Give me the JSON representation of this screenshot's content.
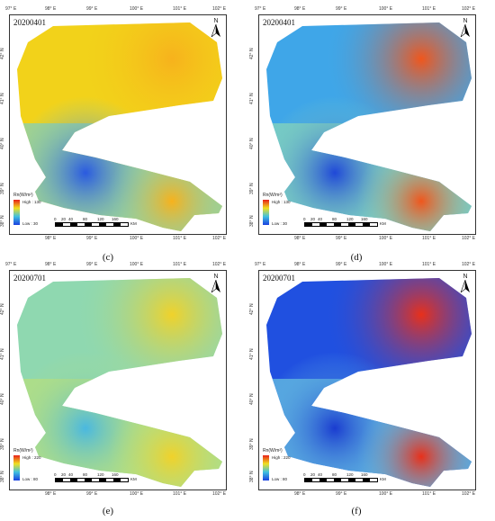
{
  "panels": [
    {
      "id": "c",
      "date": "20200401",
      "caption": "(c)",
      "legend": {
        "title": "Rn(W/m²)",
        "high": "High : 130",
        "low": "Low : 30"
      },
      "colors": {
        "base": "#f2d21a",
        "accent": "#f7b21c",
        "low": "#2a5ae0",
        "mid": "#7fd0c0"
      }
    },
    {
      "id": "d",
      "date": "20200401",
      "caption": "(d)",
      "legend": {
        "title": "Rn(W/m²)",
        "high": "High : 130",
        "low": "Low : 30"
      },
      "colors": {
        "base": "#3fa6e8",
        "accent": "#f0561c",
        "low": "#1f48d8",
        "mid": "#8cd8b8"
      }
    },
    {
      "id": "e",
      "date": "20200701",
      "caption": "(e)",
      "legend": {
        "title": "Rn(W/m²)",
        "high": "High : 220",
        "low": "Low : 80"
      },
      "colors": {
        "base": "#8fd8b0",
        "accent": "#f0d22a",
        "low": "#4ab8e0",
        "mid": "#b8e07c"
      }
    },
    {
      "id": "f",
      "date": "20200701",
      "caption": "(f)",
      "legend": {
        "title": "Rn(W/m²)",
        "high": "High : 220",
        "low": "Low : 80"
      },
      "colors": {
        "base": "#2050e0",
        "accent": "#e8301a",
        "low": "#1a3cd0",
        "mid": "#6cc8e0"
      }
    }
  ],
  "top_ticks": [
    "97° E",
    "98° E",
    "99° E",
    "100° E",
    "101° E",
    "102° E"
  ],
  "bottom_ticks": [
    "98° E",
    "99° E",
    "100° E",
    "101° E",
    "102° E"
  ],
  "left_ticks": [
    "42° N",
    "41° N",
    "40° N",
    "39° N",
    "38° N"
  ],
  "north_label": "N",
  "scale_labels": [
    "0",
    "20",
    "40",
    "80",
    "120",
    "160"
  ],
  "scale_unit": "KM"
}
